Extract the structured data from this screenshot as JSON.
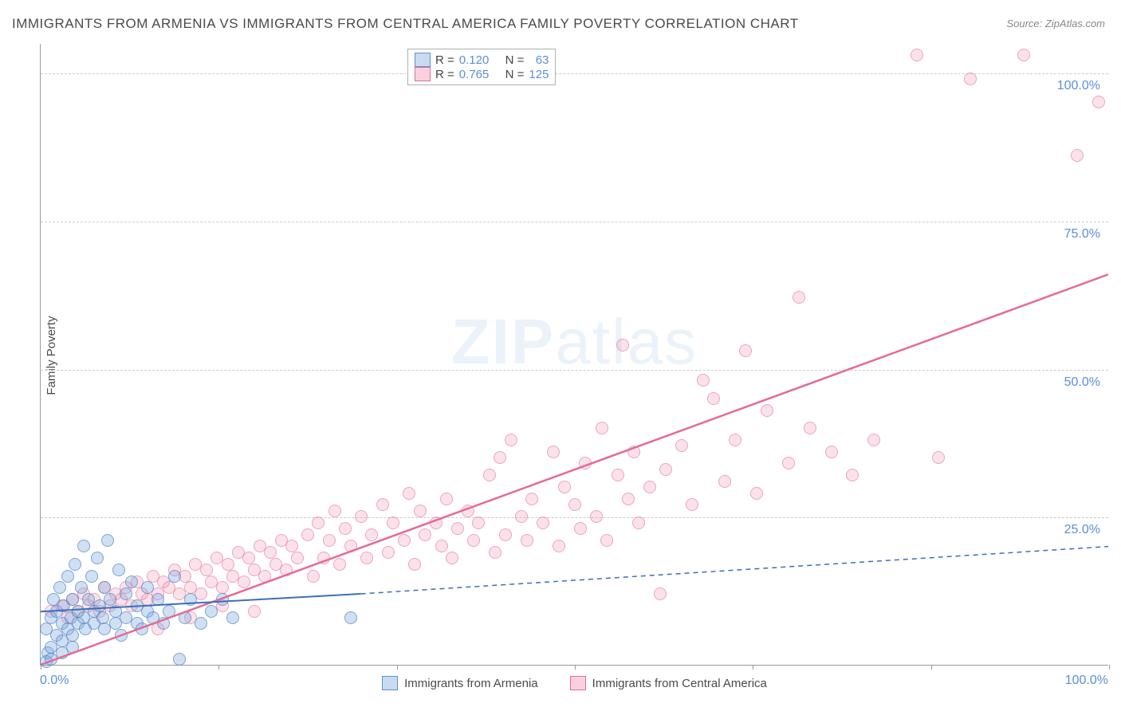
{
  "title": "IMMIGRANTS FROM ARMENIA VS IMMIGRANTS FROM CENTRAL AMERICA FAMILY POVERTY CORRELATION CHART",
  "source": "Source: ZipAtlas.com",
  "ylabel": "Family Poverty",
  "watermark_bold": "ZIP",
  "watermark_light": "atlas",
  "chart": {
    "type": "scatter",
    "xlim": [
      0,
      100
    ],
    "ylim": [
      0,
      105
    ],
    "y_ticks": [
      25,
      50,
      75,
      100
    ],
    "y_tick_labels": [
      "25.0%",
      "50.0%",
      "75.0%",
      "100.0%"
    ],
    "x_tick_positions": [
      0,
      16.67,
      33.33,
      50,
      66.67,
      83.33,
      100
    ],
    "x_label_min": "0.0%",
    "x_label_max": "100.0%",
    "background_color": "#ffffff",
    "grid_color": "#cccccc",
    "axis_color": "#999999",
    "tick_label_color": "#5b8fd6",
    "series": {
      "armenia": {
        "label": "Immigrants from Armenia",
        "color_fill": "rgba(120,165,220,0.35)",
        "color_stroke": "#5b8fd6",
        "r": 0.12,
        "n": 63,
        "trend": {
          "x1": 0,
          "y1": 9,
          "x2_solid": 30,
          "y2_solid": 12,
          "x2_dashed": 100,
          "y2_dashed": 20,
          "stroke_width": 2
        },
        "points": [
          [
            0.5,
            6
          ],
          [
            0.7,
            2
          ],
          [
            1,
            8
          ],
          [
            1,
            3
          ],
          [
            1.2,
            11
          ],
          [
            1.5,
            5
          ],
          [
            1.5,
            9
          ],
          [
            1.8,
            13
          ],
          [
            2,
            7
          ],
          [
            2,
            4
          ],
          [
            2.2,
            10
          ],
          [
            2.5,
            6
          ],
          [
            2.5,
            15
          ],
          [
            2.8,
            8
          ],
          [
            3,
            11
          ],
          [
            3,
            5
          ],
          [
            3.2,
            17
          ],
          [
            3.5,
            9
          ],
          [
            3.5,
            7
          ],
          [
            3.8,
            13
          ],
          [
            4,
            20
          ],
          [
            4,
            8
          ],
          [
            4.2,
            6
          ],
          [
            4.5,
            11
          ],
          [
            4.8,
            15
          ],
          [
            5,
            9
          ],
          [
            5,
            7
          ],
          [
            5.3,
            18
          ],
          [
            5.5,
            10
          ],
          [
            5.8,
            8
          ],
          [
            6,
            13
          ],
          [
            6,
            6
          ],
          [
            6.3,
            21
          ],
          [
            6.5,
            11
          ],
          [
            7,
            9
          ],
          [
            7,
            7
          ],
          [
            7.3,
            16
          ],
          [
            7.5,
            5
          ],
          [
            8,
            12
          ],
          [
            8,
            8
          ],
          [
            8.5,
            14
          ],
          [
            9,
            7
          ],
          [
            9,
            10
          ],
          [
            9.5,
            6
          ],
          [
            10,
            9
          ],
          [
            10,
            13
          ],
          [
            10.5,
            8
          ],
          [
            11,
            11
          ],
          [
            11.5,
            7
          ],
          [
            12,
            9
          ],
          [
            12.5,
            15
          ],
          [
            13,
            1
          ],
          [
            13.5,
            8
          ],
          [
            14,
            11
          ],
          [
            15,
            7
          ],
          [
            16,
            9
          ],
          [
            17,
            11
          ],
          [
            18,
            8
          ],
          [
            0.5,
            0.5
          ],
          [
            1,
            1
          ],
          [
            2,
            2
          ],
          [
            3,
            3
          ],
          [
            29,
            8
          ]
        ]
      },
      "central_america": {
        "label": "Immigrants from Central America",
        "color_fill": "rgba(240,140,170,0.25)",
        "color_stroke": "#e56b93",
        "r": 0.765,
        "n": 125,
        "trend": {
          "x1": 0,
          "y1": 0,
          "x2": 100,
          "y2": 66,
          "stroke_width": 2.5
        },
        "points": [
          [
            1,
            9
          ],
          [
            2,
            10
          ],
          [
            2.5,
            8
          ],
          [
            3,
            11
          ],
          [
            3.5,
            9
          ],
          [
            4,
            12
          ],
          [
            4.5,
            10
          ],
          [
            5,
            11
          ],
          [
            5.5,
            9
          ],
          [
            6,
            13
          ],
          [
            6.5,
            10
          ],
          [
            7,
            12
          ],
          [
            7.5,
            11
          ],
          [
            8,
            13
          ],
          [
            8.5,
            10
          ],
          [
            9,
            14
          ],
          [
            9.5,
            12
          ],
          [
            10,
            11
          ],
          [
            10.5,
            15
          ],
          [
            11,
            12
          ],
          [
            11.5,
            14
          ],
          [
            12,
            13
          ],
          [
            12.5,
            16
          ],
          [
            13,
            12
          ],
          [
            13.5,
            15
          ],
          [
            14,
            13
          ],
          [
            14.5,
            17
          ],
          [
            15,
            12
          ],
          [
            15.5,
            16
          ],
          [
            16,
            14
          ],
          [
            16.5,
            18
          ],
          [
            17,
            13
          ],
          [
            17.5,
            17
          ],
          [
            18,
            15
          ],
          [
            18.5,
            19
          ],
          [
            19,
            14
          ],
          [
            19.5,
            18
          ],
          [
            20,
            16
          ],
          [
            20.5,
            20
          ],
          [
            21,
            15
          ],
          [
            21.5,
            19
          ],
          [
            22,
            17
          ],
          [
            22.5,
            21
          ],
          [
            23,
            16
          ],
          [
            23.5,
            20
          ],
          [
            24,
            18
          ],
          [
            25,
            22
          ],
          [
            25.5,
            15
          ],
          [
            26,
            24
          ],
          [
            26.5,
            18
          ],
          [
            27,
            21
          ],
          [
            27.5,
            26
          ],
          [
            28,
            17
          ],
          [
            28.5,
            23
          ],
          [
            29,
            20
          ],
          [
            30,
            25
          ],
          [
            30.5,
            18
          ],
          [
            31,
            22
          ],
          [
            32,
            27
          ],
          [
            32.5,
            19
          ],
          [
            33,
            24
          ],
          [
            34,
            21
          ],
          [
            34.5,
            29
          ],
          [
            35,
            17
          ],
          [
            35.5,
            26
          ],
          [
            36,
            22
          ],
          [
            37,
            24
          ],
          [
            37.5,
            20
          ],
          [
            38,
            28
          ],
          [
            38.5,
            18
          ],
          [
            39,
            23
          ],
          [
            40,
            26
          ],
          [
            40.5,
            21
          ],
          [
            41,
            24
          ],
          [
            42,
            32
          ],
          [
            42.5,
            19
          ],
          [
            43,
            35
          ],
          [
            43.5,
            22
          ],
          [
            44,
            38
          ],
          [
            45,
            25
          ],
          [
            45.5,
            21
          ],
          [
            46,
            28
          ],
          [
            47,
            24
          ],
          [
            48,
            36
          ],
          [
            48.5,
            20
          ],
          [
            49,
            30
          ],
          [
            50,
            27
          ],
          [
            50.5,
            23
          ],
          [
            51,
            34
          ],
          [
            52,
            25
          ],
          [
            52.5,
            40
          ],
          [
            53,
            21
          ],
          [
            54,
            32
          ],
          [
            54.5,
            54
          ],
          [
            55,
            28
          ],
          [
            55.5,
            36
          ],
          [
            56,
            24
          ],
          [
            57,
            30
          ],
          [
            58,
            12
          ],
          [
            58.5,
            33
          ],
          [
            60,
            37
          ],
          [
            61,
            27
          ],
          [
            62,
            48
          ],
          [
            63,
            45
          ],
          [
            64,
            31
          ],
          [
            65,
            38
          ],
          [
            66,
            53
          ],
          [
            67,
            29
          ],
          [
            68,
            43
          ],
          [
            70,
            34
          ],
          [
            71,
            62
          ],
          [
            72,
            40
          ],
          [
            74,
            36
          ],
          [
            76,
            32
          ],
          [
            78,
            38
          ],
          [
            82,
            103
          ],
          [
            84,
            35
          ],
          [
            87,
            99
          ],
          [
            92,
            103
          ],
          [
            97,
            86
          ],
          [
            99,
            95
          ],
          [
            11,
            6
          ],
          [
            14,
            8
          ],
          [
            17,
            10
          ],
          [
            20,
            9
          ]
        ]
      }
    }
  },
  "legend_top": {
    "r_label": "R =",
    "n_label": "N =",
    "armenia_r": "0.120",
    "armenia_n": "63",
    "central_r": "0.765",
    "central_n": "125"
  }
}
